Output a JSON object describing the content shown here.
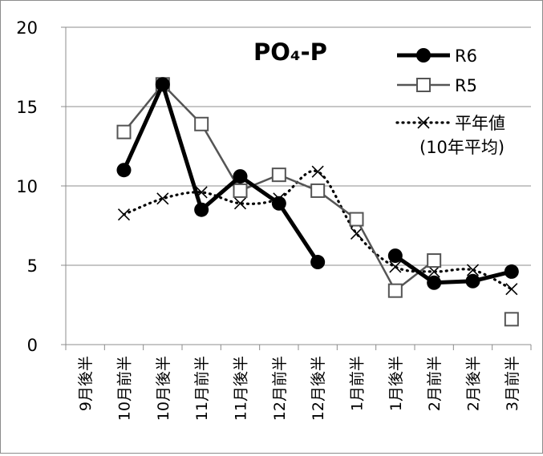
{
  "chart_data": {
    "type": "line",
    "title": "PO₄-P",
    "categories": [
      "9月後半",
      "10月前半",
      "10月後半",
      "11月前半",
      "11月後半",
      "12月前半",
      "12月後半",
      "1月前半",
      "1月後半",
      "2月前半",
      "2月後半",
      "3月前半"
    ],
    "ylim": [
      0,
      20
    ],
    "yticks": [
      0,
      5,
      10,
      15,
      20
    ],
    "grid": true,
    "legend_position": "top-right",
    "series": [
      {
        "name": "R6",
        "style": "solid-thick",
        "marker": "filled-circle",
        "color": "#000000",
        "values": [
          null,
          11.0,
          16.4,
          8.5,
          10.6,
          8.9,
          5.2,
          null,
          5.6,
          3.9,
          4.0,
          4.6
        ]
      },
      {
        "name": "R5",
        "style": "solid",
        "marker": "open-square",
        "color": "#555555",
        "values": [
          null,
          13.4,
          16.4,
          13.9,
          9.7,
          10.7,
          9.7,
          7.9,
          3.4,
          5.3,
          null,
          1.6
        ]
      },
      {
        "name": "平年値",
        "name_line2": "(10年平均)",
        "style": "dotted-smooth",
        "marker": "x",
        "color": "#000000",
        "values": [
          null,
          8.2,
          9.2,
          9.6,
          8.9,
          9.2,
          10.9,
          7.0,
          4.9,
          4.6,
          4.7,
          3.5
        ]
      }
    ]
  }
}
